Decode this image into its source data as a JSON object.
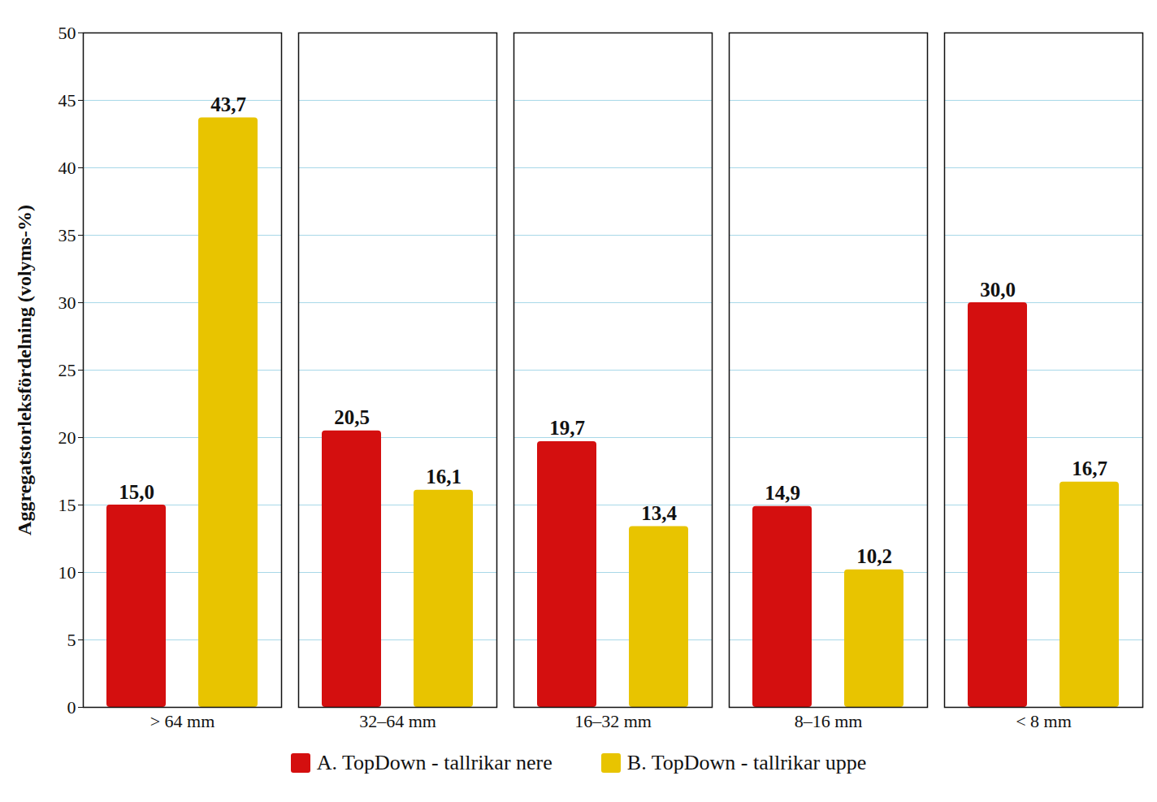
{
  "chart_data": {
    "type": "bar",
    "y_label": "Aggregatstorleksfördelning (volyms-%)",
    "categories": [
      "> 64 mm",
      "32–64 mm",
      "16–32 mm",
      "8–16 mm",
      "< 8 mm"
    ],
    "series": [
      {
        "name": "A. TopDown - tallrikar nere",
        "color": "#d40f0f",
        "values": [
          15.0,
          20.5,
          19.7,
          14.9,
          30.0
        ],
        "value_labels": [
          "15,0",
          "20,5",
          "19,7",
          "14,9",
          "30,0"
        ]
      },
      {
        "name": "B. TopDown - tallrikar uppe",
        "color": "#e8c400",
        "values": [
          43.7,
          16.1,
          13.4,
          10.2,
          16.7
        ],
        "value_labels": [
          "43,7",
          "16,1",
          "13,4",
          "10,2",
          "16,7"
        ]
      }
    ],
    "ylim": [
      0,
      50
    ],
    "yticks": [
      0,
      5,
      10,
      15,
      20,
      25,
      30,
      35,
      40,
      45,
      50
    ],
    "grid": true,
    "legend": "bottom",
    "data_labels": true
  }
}
